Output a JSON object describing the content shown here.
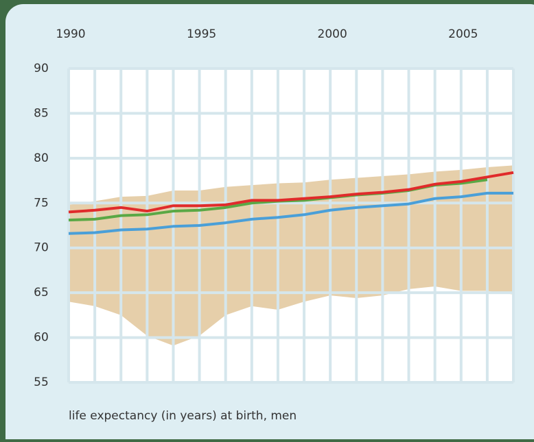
{
  "chart_data": {
    "type": "line",
    "x_label": "life expectancy (in years) at birth, men",
    "x": [
      1990,
      1991,
      1992,
      1993,
      1994,
      1995,
      1996,
      1997,
      1998,
      1999,
      2000,
      2001,
      2002,
      2003,
      2004,
      2005,
      2006,
      2007
    ],
    "xlim": [
      1990,
      2007
    ],
    "xticks": [
      1990,
      1995,
      2000,
      2005
    ],
    "ylim": [
      55,
      90
    ],
    "yticks": [
      55,
      60,
      65,
      70,
      75,
      80,
      85,
      90
    ],
    "grid": true,
    "band": {
      "color": "#e6cfaa",
      "upper": [
        74.8,
        75.2,
        75.7,
        75.8,
        76.4,
        76.4,
        76.8,
        77,
        77.2,
        77.3,
        77.6,
        77.8,
        78,
        78.2,
        78.5,
        78.7,
        79,
        79.2
      ],
      "lower": [
        64,
        63.5,
        62.5,
        60.2,
        59.1,
        60.2,
        62.5,
        63.5,
        63.1,
        64,
        64.7,
        64.4,
        64.7,
        65.4,
        65.7,
        65.2,
        65.2,
        64.8
      ]
    },
    "series": [
      {
        "color": "#4a9fd8",
        "values": [
          71.6,
          71.7,
          72,
          72.1,
          72.4,
          72.5,
          72.8,
          73.2,
          73.4,
          73.7,
          74.2,
          74.5,
          74.7,
          74.9,
          75.5,
          75.7,
          76.1,
          76.1
        ]
      },
      {
        "color": "#5aa845",
        "values": [
          73.1,
          73.2,
          73.6,
          73.7,
          74.1,
          74.2,
          74.5,
          75,
          75.2,
          75.3,
          75.6,
          75.9,
          76.1,
          76.4,
          77,
          77.2,
          77.6,
          null
        ]
      },
      {
        "color": "#e02b2b",
        "values": [
          74,
          74.2,
          74.5,
          74.1,
          74.7,
          74.7,
          74.8,
          75.3,
          75.3,
          75.5,
          75.7,
          76,
          76.2,
          76.5,
          77.1,
          77.4,
          77.9,
          78.4
        ]
      }
    ]
  }
}
